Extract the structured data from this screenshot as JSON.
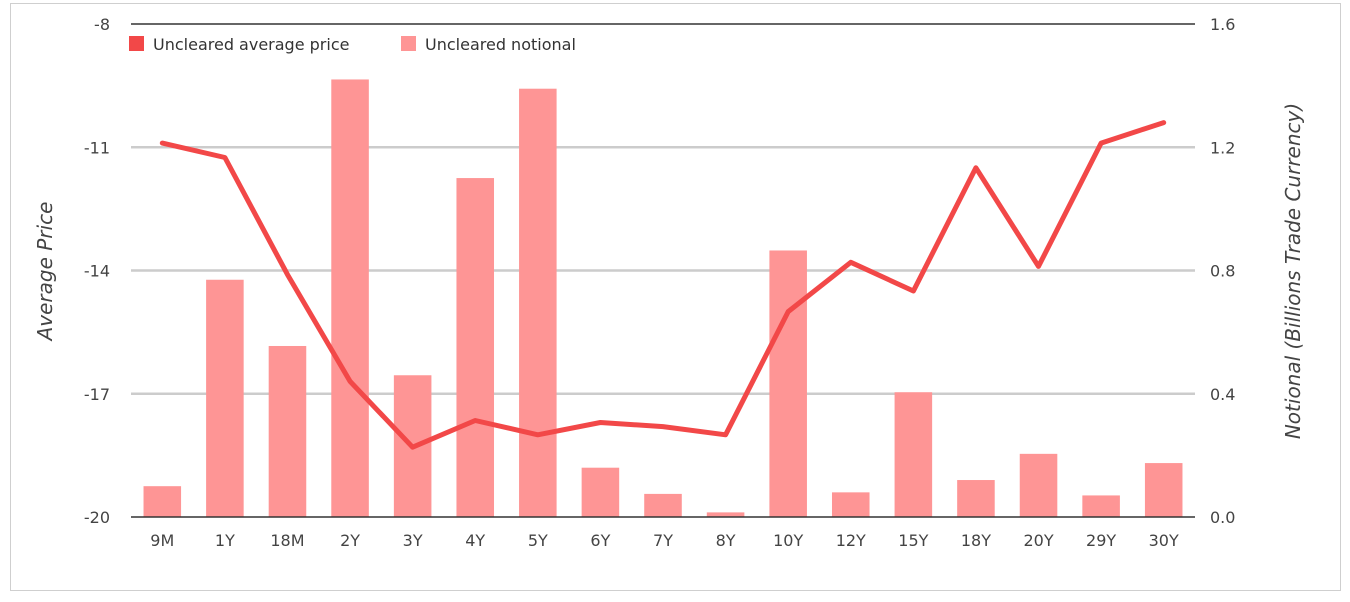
{
  "chart_data": {
    "type": "bar+line",
    "title": "",
    "categories": [
      "9M",
      "1Y",
      "18M",
      "2Y",
      "3Y",
      "4Y",
      "5Y",
      "6Y",
      "7Y",
      "8Y",
      "10Y",
      "12Y",
      "15Y",
      "18Y",
      "20Y",
      "29Y",
      "30Y"
    ],
    "series": [
      {
        "name": "Uncleared average price",
        "type": "line",
        "axis": "left",
        "color": "#f24848",
        "values": [
          -10.9,
          -11.25,
          -14.1,
          -16.7,
          -18.3,
          -17.65,
          -18.0,
          -17.7,
          -17.8,
          -18.0,
          -15.0,
          -13.8,
          -14.5,
          -11.5,
          -13.9,
          -10.9,
          -10.4
        ]
      },
      {
        "name": "Uncleared notional",
        "type": "bar",
        "axis": "right",
        "color": "#fe9595",
        "values": [
          0.1,
          0.77,
          0.555,
          1.42,
          0.46,
          1.1,
          1.39,
          0.16,
          0.075,
          0.015,
          0.865,
          0.08,
          0.405,
          0.12,
          0.205,
          0.07,
          0.175
        ]
      }
    ],
    "left_axis": {
      "label": "Average Price",
      "ylim": [
        -20,
        -8
      ],
      "ticks": [
        "-8",
        "-11",
        "-14",
        "-17",
        "-20"
      ],
      "tick_values": [
        -8,
        -11,
        -14,
        -17,
        -20
      ]
    },
    "right_axis": {
      "label": "Notional (Billions Trade Currency)",
      "ylim": [
        0,
        1.6
      ],
      "ticks": [
        "1.6",
        "1.2",
        "0.8",
        "0.4",
        "0.0"
      ],
      "tick_values": [
        1.6,
        1.2,
        0.8,
        0.4,
        0.0
      ]
    },
    "grid": true,
    "legend_position": "top-left",
    "colors": {
      "gridline": "#cccccc",
      "axis_line": "#333333",
      "text": "#444444"
    }
  }
}
